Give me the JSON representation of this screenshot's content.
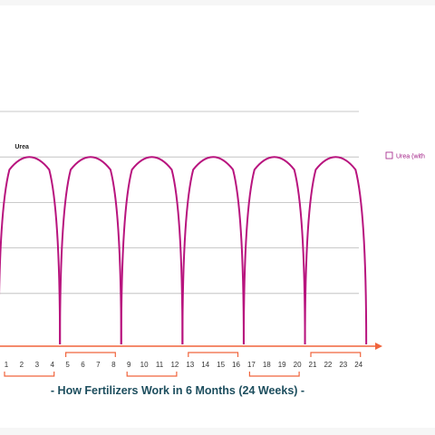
{
  "chart_data": {
    "type": "line",
    "title": "- How Fertilizers Work in 6 Months (24 Weeks) -",
    "xlabel": "",
    "ylabel": "",
    "x_categories": [
      "1",
      "2",
      "3",
      "4",
      "5",
      "6",
      "7",
      "8",
      "9",
      "10",
      "11",
      "12",
      "13",
      "14",
      "15",
      "16",
      "17",
      "18",
      "19",
      "20",
      "21",
      "22",
      "23",
      "24"
    ],
    "week_groups": [
      [
        1,
        4
      ],
      [
        5,
        8
      ],
      [
        9,
        12
      ],
      [
        13,
        16
      ],
      [
        17,
        20
      ],
      [
        21,
        24
      ]
    ],
    "ylim": [
      0,
      5
    ],
    "grid": true,
    "legend": {
      "position": "right",
      "text": "Urea (with"
    },
    "series": [
      {
        "name": "Urea",
        "color": "#b8147e",
        "points": [
          [
            0.5,
            0
          ],
          [
            2.5,
            4
          ],
          [
            4.5,
            0
          ],
          [
            6.5,
            4
          ],
          [
            8.5,
            0
          ],
          [
            10.5,
            4
          ],
          [
            12.5,
            0
          ],
          [
            14.5,
            4
          ],
          [
            16.5,
            0
          ],
          [
            18.5,
            4
          ],
          [
            20.5,
            0
          ],
          [
            22.5,
            4
          ],
          [
            24.5,
            0
          ]
        ]
      }
    ],
    "colors": {
      "axis": "#f0643c",
      "grid": "#b9b9b9",
      "caption": "#1d4e5e",
      "legend": "#a01c84"
    }
  }
}
